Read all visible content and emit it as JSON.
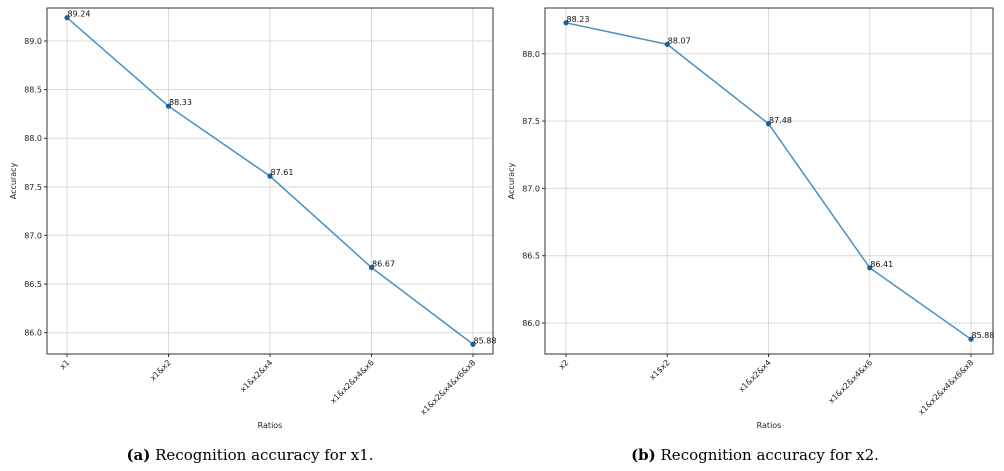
{
  "chart_data": [
    {
      "type": "line",
      "categories": [
        "x1",
        "x1&x2",
        "x1&x2&x4",
        "x1&x2&x4&x6",
        "x1&x2&x4&x6&x8"
      ],
      "series": [
        {
          "values": [
            89.24,
            88.33,
            87.61,
            86.67,
            85.88
          ]
        }
      ],
      "data_labels": [
        "89.24",
        "88.33",
        "87.61",
        "86.67",
        "85.88"
      ],
      "xlabel": "Ratios",
      "ylabel": "Accuracy",
      "ylim": [
        85.78,
        89.34
      ],
      "yticks": [
        86.0,
        86.5,
        87.0,
        87.5,
        88.0,
        88.5,
        89.0
      ],
      "ytick_labels": [
        "86.0",
        "86.5",
        "87.0",
        "87.5",
        "88.0",
        "88.5",
        "89.0"
      ],
      "grid": true,
      "line_color": "#4a90c2",
      "caption_tag": "(a)",
      "caption_text": " Recognition accuracy for x1."
    },
    {
      "type": "line",
      "categories": [
        "x2",
        "x1$x2",
        "x1&x2&x4",
        "x1&x2&x4&x6",
        "x1&x2&x4&x6&x8"
      ],
      "series": [
        {
          "values": [
            88.23,
            88.07,
            87.48,
            86.41,
            85.88
          ]
        }
      ],
      "data_labels": [
        "88.23",
        "88.07",
        "87.48",
        "86.41",
        "85.88"
      ],
      "xlabel": "Ratios",
      "ylabel": "Accuracy",
      "ylim": [
        85.77,
        88.34
      ],
      "yticks": [
        86.0,
        86.5,
        87.0,
        87.5,
        88.0
      ],
      "ytick_labels": [
        "86.0",
        "86.5",
        "87.0",
        "87.5",
        "88.0"
      ],
      "grid": true,
      "line_color": "#4a90c2",
      "caption_tag": "(b)",
      "caption_text": " Recognition accuracy for x2."
    }
  ]
}
